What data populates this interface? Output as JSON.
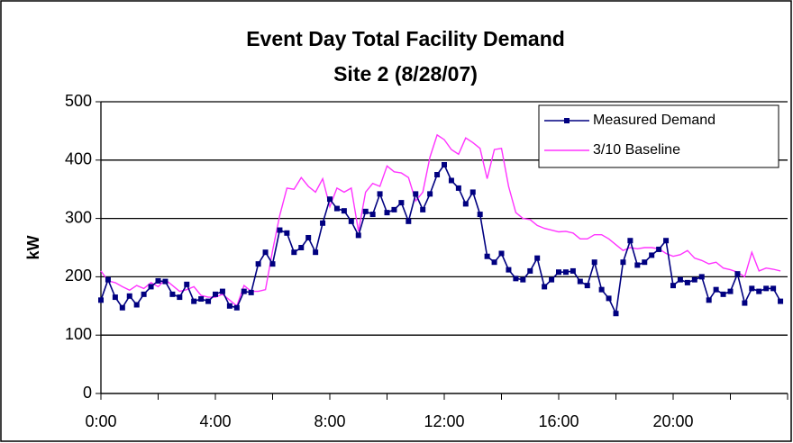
{
  "chart_data": {
    "type": "line",
    "title": "Event Day Total Facility Demand",
    "subtitle": "Site 2 (8/28/07)",
    "y_label": "kW",
    "x": [
      0,
      0.25,
      0.5,
      0.75,
      1,
      1.25,
      1.5,
      1.75,
      2,
      2.25,
      2.5,
      2.75,
      3,
      3.25,
      3.5,
      3.75,
      4,
      4.25,
      4.5,
      4.75,
      5,
      5.25,
      5.5,
      5.75,
      6,
      6.25,
      6.5,
      6.75,
      7,
      7.25,
      7.5,
      7.75,
      8,
      8.25,
      8.5,
      8.75,
      9,
      9.25,
      9.5,
      9.75,
      10,
      10.25,
      10.5,
      10.75,
      11,
      11.25,
      11.5,
      11.75,
      12,
      12.25,
      12.5,
      12.75,
      13,
      13.25,
      13.5,
      13.75,
      14,
      14.25,
      14.5,
      14.75,
      15,
      15.25,
      15.5,
      15.75,
      16,
      16.25,
      16.5,
      16.75,
      17,
      17.25,
      17.5,
      17.75,
      18,
      18.25,
      18.5,
      18.75,
      19,
      19.25,
      19.5,
      19.75,
      20,
      20.25,
      20.5,
      20.75,
      21,
      21.25,
      21.5,
      21.75,
      22,
      22.25,
      22.5,
      22.75,
      23,
      23.25,
      23.5,
      23.75
    ],
    "series": [
      {
        "name": "Measured Demand",
        "color": "#000080",
        "marker": true,
        "values": [
          160,
          195,
          165,
          147,
          167,
          152,
          170,
          183,
          193,
          192,
          170,
          165,
          187,
          158,
          162,
          158,
          170,
          175,
          150,
          147,
          175,
          173,
          222,
          242,
          222,
          280,
          275,
          242,
          250,
          267,
          242,
          292,
          333,
          317,
          313,
          295,
          271,
          312,
          307,
          342,
          310,
          315,
          327,
          295,
          342,
          315,
          342,
          375,
          392,
          365,
          352,
          325,
          345,
          307,
          235,
          225,
          240,
          212,
          197,
          195,
          210,
          232,
          183,
          195,
          208,
          208,
          210,
          192,
          185,
          225,
          178,
          163,
          137,
          225,
          262,
          220,
          225,
          237,
          247,
          262,
          185,
          195,
          190,
          195,
          200,
          160,
          178,
          170,
          175,
          205,
          155,
          180,
          175,
          180,
          180,
          158
        ]
      },
      {
        "name": "3/10 Baseline",
        "color": "#ff33ff",
        "marker": false,
        "values": [
          210,
          193,
          190,
          183,
          177,
          185,
          180,
          190,
          183,
          195,
          185,
          175,
          178,
          183,
          168,
          165,
          165,
          170,
          160,
          150,
          185,
          175,
          175,
          178,
          245,
          305,
          352,
          350,
          370,
          355,
          345,
          368,
          320,
          352,
          345,
          352,
          278,
          345,
          360,
          355,
          390,
          380,
          378,
          370,
          330,
          345,
          405,
          443,
          435,
          418,
          410,
          438,
          430,
          420,
          368,
          418,
          420,
          355,
          310,
          300,
          298,
          288,
          283,
          280,
          277,
          278,
          275,
          265,
          265,
          272,
          272,
          265,
          255,
          245,
          250,
          248,
          250,
          250,
          248,
          240,
          235,
          238,
          245,
          232,
          228,
          222,
          225,
          215,
          212,
          208,
          200,
          242,
          210,
          215,
          213,
          210
        ]
      }
    ],
    "xlim": [
      0,
      24
    ],
    "xticks": [
      {
        "value": 0,
        "label": "0:00"
      },
      {
        "value": 4,
        "label": "4:00"
      },
      {
        "value": 8,
        "label": "8:00"
      },
      {
        "value": 12,
        "label": "12:00"
      },
      {
        "value": 16,
        "label": "16:00"
      },
      {
        "value": 20,
        "label": "20:00"
      }
    ],
    "ylim": [
      0,
      500
    ],
    "yticks": [
      0,
      100,
      200,
      300,
      400,
      500
    ],
    "grid": true,
    "legend": "top-right"
  }
}
